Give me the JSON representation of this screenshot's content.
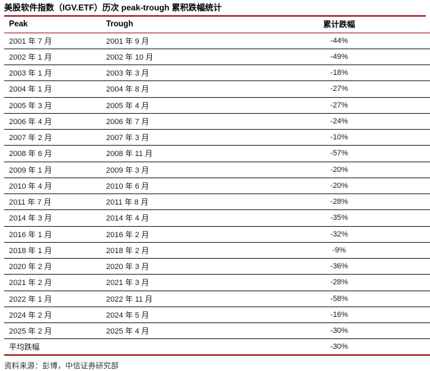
{
  "title": "美股软件指数（IGV.ETF）历次 peak-trough 累积跌幅统计",
  "colors": {
    "accent_red": "#A11212",
    "row_divider": "#1f1f1f",
    "text": "#1a1a1a",
    "source_text": "#333333"
  },
  "table": {
    "columns": [
      {
        "key": "peak",
        "label": "Peak"
      },
      {
        "key": "trough",
        "label": "Trough"
      },
      {
        "key": "drawdown",
        "label": "累计跌幅"
      }
    ],
    "rows": [
      {
        "peak": "2001 年 7 月",
        "trough": "2001 年 9 月",
        "drawdown": "-44%"
      },
      {
        "peak": "2002 年 1 月",
        "trough": "2002 年 10 月",
        "drawdown": "-49%"
      },
      {
        "peak": "2003 年 1 月",
        "trough": "2003 年 3 月",
        "drawdown": "-18%"
      },
      {
        "peak": "2004 年 1 月",
        "trough": "2004 年 8 月",
        "drawdown": "-27%"
      },
      {
        "peak": "2005 年 3 月",
        "trough": "2005 年 4 月",
        "drawdown": "-27%"
      },
      {
        "peak": "2006 年 4 月",
        "trough": "2006 年 7 月",
        "drawdown": "-24%"
      },
      {
        "peak": "2007 年 2 月",
        "trough": "2007 年 3 月",
        "drawdown": "-10%"
      },
      {
        "peak": "2008 年 6 月",
        "trough": "2008 年 11 月",
        "drawdown": "-57%"
      },
      {
        "peak": "2009 年 1 月",
        "trough": "2009 年 3 月",
        "drawdown": "-20%"
      },
      {
        "peak": "2010 年 4 月",
        "trough": "2010 年 6 月",
        "drawdown": "-20%"
      },
      {
        "peak": "2011 年 7 月",
        "trough": "2011 年 8 月",
        "drawdown": "-28%"
      },
      {
        "peak": "2014 年 3 月",
        "trough": "2014 年 4 月",
        "drawdown": "-35%"
      },
      {
        "peak": "2016 年 1 月",
        "trough": "2016 年 2 月",
        "drawdown": "-32%"
      },
      {
        "peak": "2018 年 1 月",
        "trough": "2018 年 2 月",
        "drawdown": "-9%"
      },
      {
        "peak": "2020 年 2 月",
        "trough": "2020 年 3 月",
        "drawdown": "-36%"
      },
      {
        "peak": "2021 年 2 月",
        "trough": "2021 年 3 月",
        "drawdown": "-28%"
      },
      {
        "peak": "2022 年 1 月",
        "trough": "2022 年 11 月",
        "drawdown": "-58%"
      },
      {
        "peak": "2024 年 2 月",
        "trough": "2024 年 5 月",
        "drawdown": "-16%"
      },
      {
        "peak": "2025 年 2 月",
        "trough": "2025 年 4 月",
        "drawdown": "-30%"
      }
    ],
    "summary_row": {
      "label": "平均跌幅",
      "drawdown": "-30%"
    }
  },
  "footer": {
    "source": "资料来源：彭博，中信证券研究部"
  },
  "chart_data": {
    "type": "table",
    "title": "美股软件指数（IGV.ETF）历次 peak-trough 累积跌幅统计",
    "columns": [
      "Peak",
      "Trough",
      "累计跌幅"
    ],
    "rows": [
      [
        "2001 年 7 月",
        "2001 年 9 月",
        "-44%"
      ],
      [
        "2002 年 1 月",
        "2002 年 10 月",
        "-49%"
      ],
      [
        "2003 年 1 月",
        "2003 年 3 月",
        "-18%"
      ],
      [
        "2004 年 1 月",
        "2004 年 8 月",
        "-27%"
      ],
      [
        "2005 年 3 月",
        "2005 年 4 月",
        "-27%"
      ],
      [
        "2006 年 4 月",
        "2006 年 7 月",
        "-24%"
      ],
      [
        "2007 年 2 月",
        "2007 年 3 月",
        "-10%"
      ],
      [
        "2008 年 6 月",
        "2008 年 11 月",
        "-57%"
      ],
      [
        "2009 年 1 月",
        "2009 年 3 月",
        "-20%"
      ],
      [
        "2010 年 4 月",
        "2010 年 6 月",
        "-20%"
      ],
      [
        "2011 年 7 月",
        "2011 年 8 月",
        "-28%"
      ],
      [
        "2014 年 3 月",
        "2014 年 4 月",
        "-35%"
      ],
      [
        "2016 年 1 月",
        "2016 年 2 月",
        "-32%"
      ],
      [
        "2018 年 1 月",
        "2018 年 2 月",
        "-9%"
      ],
      [
        "2020 年 2 月",
        "2020 年 3 月",
        "-36%"
      ],
      [
        "2021 年 2 月",
        "2021 年 3 月",
        "-28%"
      ],
      [
        "2022 年 1 月",
        "2022 年 11 月",
        "-58%"
      ],
      [
        "2024 年 2 月",
        "2024 年 5 月",
        "-16%"
      ],
      [
        "2025 年 2 月",
        "2025 年 4 月",
        "-30%"
      ],
      [
        "平均跌幅",
        "",
        "-30%"
      ]
    ]
  }
}
